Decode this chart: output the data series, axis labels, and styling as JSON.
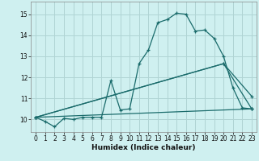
{
  "xlabel": "Humidex (Indice chaleur)",
  "bg_color": "#cff0f0",
  "grid_color": "#b0d4d4",
  "line_color": "#1a6b6b",
  "xlim": [
    -0.5,
    23.5
  ],
  "ylim": [
    9.4,
    15.6
  ],
  "yticks": [
    10,
    11,
    12,
    13,
    14,
    15
  ],
  "xticks": [
    0,
    1,
    2,
    3,
    4,
    5,
    6,
    7,
    8,
    9,
    10,
    11,
    12,
    13,
    14,
    15,
    16,
    17,
    18,
    19,
    20,
    21,
    22,
    23
  ],
  "series1_x": [
    0,
    1,
    2,
    3,
    4,
    5,
    6,
    7,
    8,
    9,
    10,
    11,
    12,
    13,
    14,
    15,
    16,
    17,
    18,
    19,
    20,
    21,
    22,
    23
  ],
  "series1_y": [
    10.1,
    9.9,
    9.65,
    10.05,
    10.0,
    10.1,
    10.1,
    10.1,
    11.85,
    10.45,
    10.5,
    12.65,
    13.3,
    14.6,
    14.75,
    15.05,
    15.0,
    14.2,
    14.25,
    13.85,
    13.0,
    11.5,
    10.55,
    10.5
  ],
  "series2_x": [
    0,
    23
  ],
  "series2_y": [
    10.1,
    10.5
  ],
  "series3_x": [
    0,
    20,
    23
  ],
  "series3_y": [
    10.1,
    12.65,
    10.5
  ],
  "series4_x": [
    0,
    20,
    23
  ],
  "series4_y": [
    10.1,
    12.65,
    11.1
  ]
}
